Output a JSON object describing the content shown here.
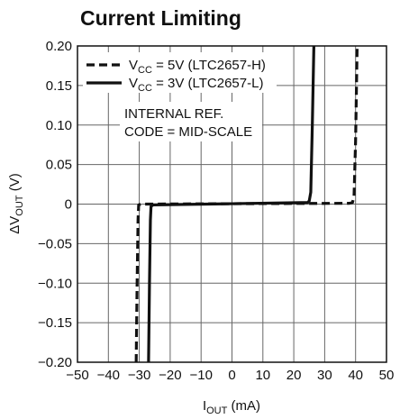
{
  "chart_data": {
    "type": "line",
    "title": "Current Limiting",
    "xlabel": {
      "main": "I",
      "sub": "OUT",
      "unit": " (mA)"
    },
    "ylabel": {
      "prefix": "ΔV",
      "sub": "OUT",
      "unit": " (V)"
    },
    "xlim": [
      -50,
      50
    ],
    "ylim": [
      -0.2,
      0.2
    ],
    "x_ticks": [
      "−50",
      "−40",
      "−30",
      "−20",
      "−10",
      "0",
      "10",
      "20",
      "30",
      "40",
      "50"
    ],
    "y_ticks": [
      "0.20",
      "0.15",
      "0.10",
      "0.05",
      "0",
      "−0.05",
      "−0.10",
      "−0.15",
      "−0.20"
    ],
    "grid": true,
    "series": [
      {
        "name": {
          "pre": "V",
          "sub": "CC",
          "post": " = 5V (LTC2657-H)"
        },
        "style": "dashed",
        "points": [
          [
            -31,
            -0.2
          ],
          [
            -30.7,
            -0.1
          ],
          [
            -30.4,
            -0.02
          ],
          [
            -30.2,
            -0.001
          ],
          [
            -29.5,
            0.0
          ],
          [
            0,
            0.0005
          ],
          [
            38,
            0.001
          ],
          [
            39,
            0.002
          ],
          [
            39.5,
            0.01
          ],
          [
            40,
            0.08
          ],
          [
            40.5,
            0.2
          ]
        ]
      },
      {
        "name": {
          "pre": "V",
          "sub": "CC",
          "post": " = 3V (LTC2657-L)"
        },
        "style": "solid",
        "points": [
          [
            -27,
            -0.2
          ],
          [
            -26.7,
            -0.1
          ],
          [
            -26.4,
            -0.02
          ],
          [
            -26.2,
            -0.003
          ],
          [
            -25.5,
            -0.001
          ],
          [
            0,
            0.0005
          ],
          [
            24.5,
            0.002
          ],
          [
            25,
            0.004
          ],
          [
            25.5,
            0.015
          ],
          [
            26,
            0.1
          ],
          [
            26.5,
            0.2
          ]
        ]
      }
    ],
    "annotation": [
      "INTERNAL REF.",
      "CODE = MID-SCALE"
    ],
    "legend": "top-left"
  }
}
